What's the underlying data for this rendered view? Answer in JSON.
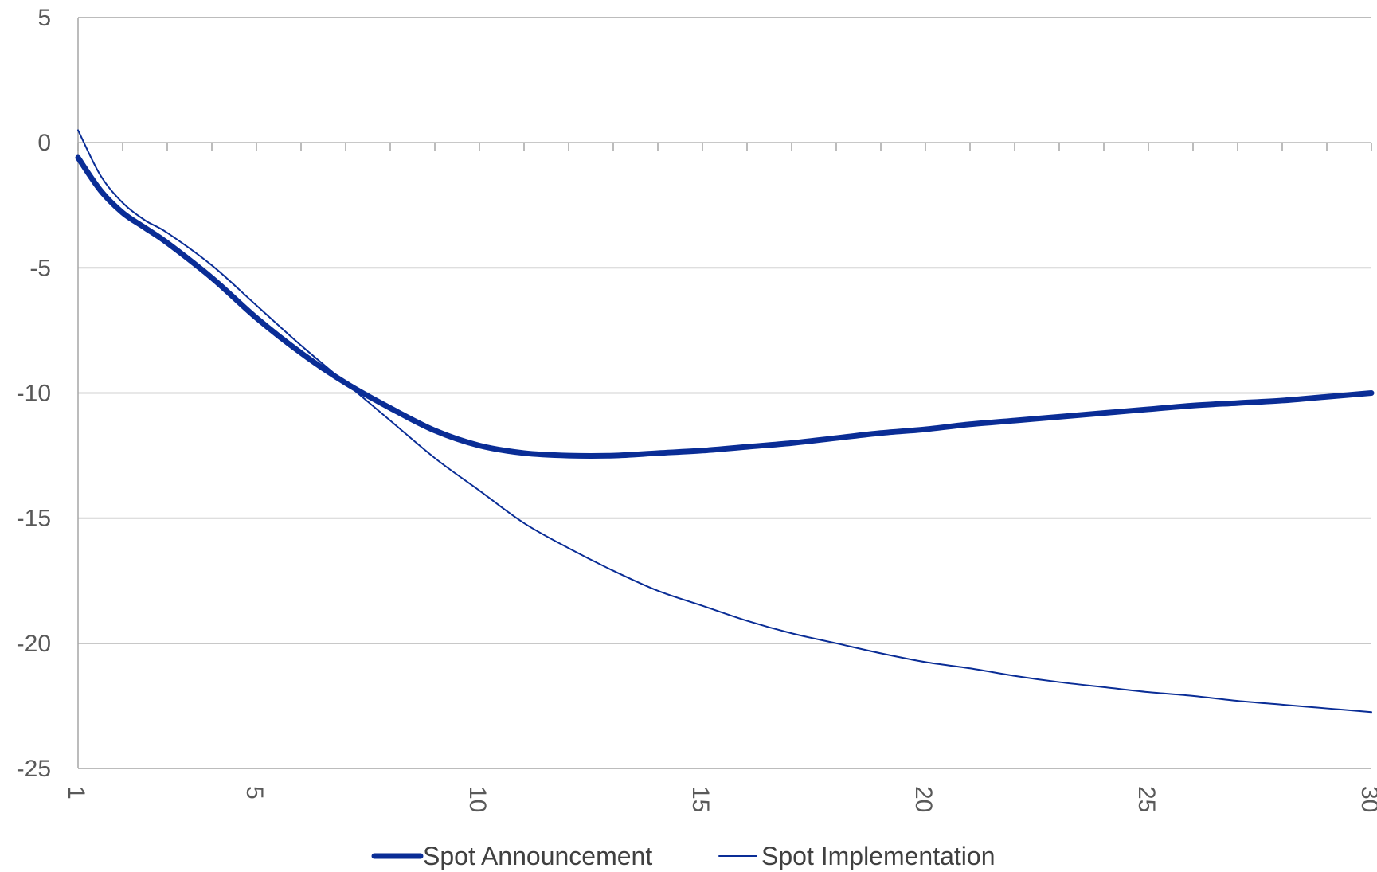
{
  "chart_data": {
    "type": "line",
    "xlim": [
      1,
      30
    ],
    "ylim": [
      -25,
      5
    ],
    "y_ticks": [
      5,
      0,
      -5,
      -10,
      -15,
      -20,
      -25
    ],
    "x_tick_labels": [
      1,
      5,
      10,
      15,
      20,
      25,
      30
    ],
    "x_tick_label_rotation": 90,
    "grid": "horizontal",
    "legend_position": "bottom",
    "colors": {
      "series": "#0a2d96",
      "grid": "#a6a6a6",
      "axis": "#a6a6a6",
      "text": "#595959"
    },
    "series": [
      {
        "name": "Spot Announcement",
        "line_style": "thick",
        "x": [
          1,
          1.5,
          2,
          2.5,
          3,
          4,
          5,
          6,
          7,
          8,
          9,
          10,
          11,
          12,
          13,
          14,
          15,
          16,
          17,
          18,
          19,
          20,
          21,
          22,
          23,
          24,
          25,
          26,
          27,
          28,
          29,
          30
        ],
        "values": [
          -0.6,
          -1.9,
          -2.8,
          -3.4,
          -4.0,
          -5.4,
          -7.0,
          -8.4,
          -9.6,
          -10.6,
          -11.5,
          -12.1,
          -12.4,
          -12.5,
          -12.5,
          -12.4,
          -12.3,
          -12.15,
          -12.0,
          -11.8,
          -11.6,
          -11.45,
          -11.25,
          -11.1,
          -10.95,
          -10.8,
          -10.65,
          -10.5,
          -10.4,
          -10.3,
          -10.15,
          -10.0
        ]
      },
      {
        "name": "Spot Implementation",
        "line_style": "thin",
        "x": [
          1,
          1.5,
          2,
          2.5,
          3,
          4,
          5,
          6,
          7,
          8,
          9,
          10,
          11,
          12,
          13,
          14,
          15,
          16,
          17,
          18,
          19,
          20,
          21,
          22,
          23,
          24,
          25,
          26,
          27,
          28,
          29,
          30
        ],
        "values": [
          0.5,
          -1.3,
          -2.4,
          -3.1,
          -3.6,
          -4.9,
          -6.5,
          -8.1,
          -9.6,
          -11.1,
          -12.6,
          -13.9,
          -15.2,
          -16.2,
          -17.1,
          -17.9,
          -18.5,
          -19.1,
          -19.6,
          -20.0,
          -20.4,
          -20.75,
          -21.0,
          -21.3,
          -21.55,
          -21.75,
          -21.95,
          -22.1,
          -22.3,
          -22.45,
          -22.6,
          -22.75
        ]
      }
    ]
  }
}
